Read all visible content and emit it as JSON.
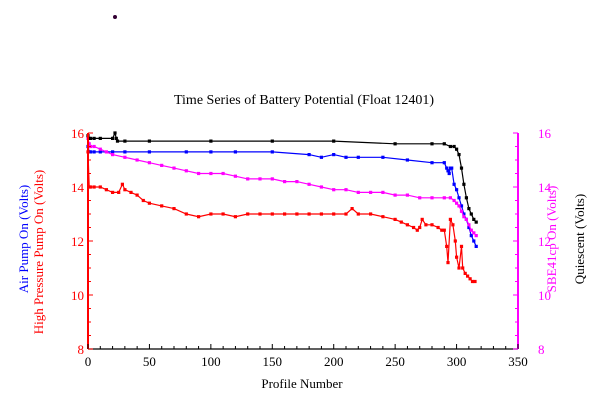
{
  "chart_data": {
    "type": "line",
    "title": "Time Series of Battery Potential (Float 12401)",
    "xlabel": "Profile Number",
    "xlim": [
      0,
      350
    ],
    "xticks": [
      "0",
      "50",
      "100",
      "150",
      "200",
      "250",
      "300",
      "350"
    ],
    "ylim": [
      8,
      16
    ],
    "yticks": [
      "8",
      "10",
      "12",
      "14",
      "16"
    ],
    "left_axis_color": "#ff0000",
    "right_axis_color": "#ff00ff",
    "y_labels_left": [
      {
        "text": "Air Pump On (Volts)",
        "color": "#0000ff"
      },
      {
        "text": "High Pressure Pump On (Volts)",
        "color": "#ff0000"
      }
    ],
    "y_labels_right": [
      {
        "text": "SBE41cp On (Volts)",
        "color": "#ff00ff"
      },
      {
        "text": "Quiescent (Volts)",
        "color": "#000000"
      }
    ],
    "series": [
      {
        "label": "Air Pump On (Volts)",
        "color": "#0000ff",
        "x": [
          0,
          1,
          2,
          5,
          10,
          20,
          30,
          50,
          80,
          100,
          120,
          150,
          180,
          190,
          200,
          210,
          220,
          240,
          260,
          280,
          290,
          292,
          293,
          294,
          295,
          296,
          298,
          300,
          302,
          304,
          306,
          308,
          310,
          312,
          314,
          316
        ],
        "y": [
          15.5,
          15.3,
          15.3,
          15.3,
          15.3,
          15.3,
          15.3,
          15.3,
          15.3,
          15.3,
          15.3,
          15.3,
          15.2,
          15.1,
          15.2,
          15.1,
          15.1,
          15.1,
          15.0,
          14.9,
          14.9,
          14.7,
          14.6,
          14.5,
          14.7,
          14.7,
          14.1,
          13.9,
          13.6,
          13.3,
          13.0,
          12.8,
          12.5,
          12.2,
          12.0,
          11.8
        ]
      },
      {
        "label": "High Pressure Pump On (Volts)",
        "color": "#ff0000",
        "x": [
          0,
          1,
          2,
          5,
          10,
          15,
          20,
          25,
          28,
          30,
          35,
          40,
          45,
          50,
          60,
          70,
          80,
          90,
          100,
          110,
          120,
          130,
          140,
          150,
          160,
          170,
          180,
          190,
          200,
          210,
          215,
          220,
          230,
          240,
          250,
          255,
          260,
          265,
          268,
          270,
          272,
          275,
          280,
          285,
          288,
          290,
          292,
          293,
          295,
          297,
          299,
          300,
          302,
          304,
          305,
          307,
          309,
          311,
          313,
          315
        ],
        "y": [
          15.3,
          14.0,
          14.0,
          14.0,
          14.0,
          13.9,
          13.8,
          13.8,
          14.1,
          13.9,
          13.8,
          13.7,
          13.5,
          13.4,
          13.3,
          13.2,
          13.0,
          12.9,
          13.0,
          13.0,
          12.9,
          13.0,
          13.0,
          13.0,
          13.0,
          13.0,
          13.0,
          13.0,
          13.0,
          13.0,
          13.2,
          13.0,
          13.0,
          12.9,
          12.8,
          12.7,
          12.6,
          12.5,
          12.4,
          12.5,
          12.8,
          12.6,
          12.6,
          12.5,
          12.4,
          12.4,
          11.8,
          11.2,
          12.8,
          12.6,
          12.0,
          11.4,
          11.0,
          11.8,
          11.0,
          10.8,
          10.7,
          10.6,
          10.5,
          10.5
        ]
      },
      {
        "label": "SBE41cp On (Volts)",
        "color": "#ff00ff",
        "x": [
          0,
          1,
          2,
          5,
          10,
          15,
          20,
          30,
          40,
          50,
          60,
          70,
          80,
          90,
          100,
          110,
          120,
          130,
          140,
          150,
          160,
          170,
          180,
          190,
          200,
          210,
          220,
          230,
          240,
          250,
          260,
          270,
          280,
          290,
          295,
          298,
          300,
          302,
          304,
          306,
          308,
          310,
          312,
          314,
          316
        ],
        "y": [
          15.8,
          15.6,
          15.5,
          15.5,
          15.4,
          15.3,
          15.2,
          15.1,
          15.0,
          14.9,
          14.8,
          14.7,
          14.6,
          14.5,
          14.5,
          14.5,
          14.4,
          14.3,
          14.3,
          14.3,
          14.2,
          14.2,
          14.1,
          14.0,
          13.9,
          13.9,
          13.8,
          13.8,
          13.8,
          13.7,
          13.7,
          13.6,
          13.6,
          13.6,
          13.6,
          13.5,
          13.4,
          13.3,
          13.1,
          12.9,
          12.8,
          12.6,
          12.4,
          12.3,
          12.2
        ]
      },
      {
        "label": "Quiescent (Volts)",
        "color": "#000000",
        "x": [
          0,
          1,
          2,
          5,
          10,
          20,
          22,
          23,
          24,
          30,
          50,
          100,
          150,
          200,
          250,
          280,
          290,
          295,
          298,
          300,
          302,
          304,
          306,
          308,
          310,
          312,
          314,
          316
        ],
        "y": [
          15.9,
          15.8,
          15.8,
          15.8,
          15.8,
          15.8,
          16.0,
          15.8,
          15.7,
          15.7,
          15.7,
          15.7,
          15.7,
          15.7,
          15.6,
          15.6,
          15.6,
          15.5,
          15.5,
          15.4,
          15.2,
          14.7,
          14.1,
          13.6,
          13.2,
          13.0,
          12.8,
          12.7
        ]
      }
    ]
  }
}
